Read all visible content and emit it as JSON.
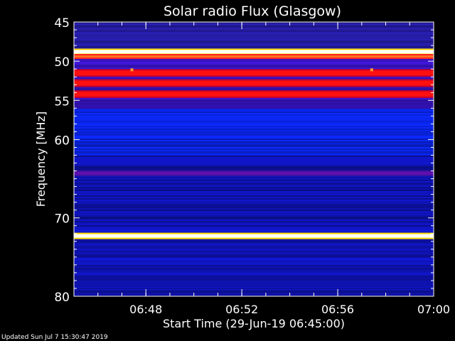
{
  "footer_text": "Updated Sun Jul  7 15:30:47 2019",
  "chart_data": {
    "type": "heatmap",
    "title": "Solar radio Flux (Glasgow)",
    "xlabel": "Start Time (29-Jun-19 06:45:00)",
    "ylabel": "Frequency [MHz]",
    "xlim": [
      "06:45:00",
      "07:00:00"
    ],
    "ylim": [
      45,
      80
    ],
    "x_ticks": [
      "06:48",
      "06:52",
      "06:56",
      "07:00"
    ],
    "y_ticks": [
      45,
      50,
      55,
      60,
      70,
      80
    ],
    "y_inverted": true,
    "colormap": [
      "#0000a0",
      "#0000ff",
      "#ff0000",
      "#ffff00",
      "#ffffff"
    ],
    "intense_bands_mhz": [
      {
        "freq": 48.8,
        "level": "max"
      },
      {
        "freq": 49.4,
        "level": "medium"
      },
      {
        "freq": 51.5,
        "level": "high"
      },
      {
        "freq": 52.8,
        "level": "high"
      },
      {
        "freq": 54.2,
        "level": "high"
      },
      {
        "freq": 64.3,
        "level": "low"
      },
      {
        "freq": 72.3,
        "level": "max"
      }
    ],
    "isolated_points": [
      {
        "time": "06:47:25",
        "freq": 51.1
      },
      {
        "time": "06:57:25",
        "freq": 51.1
      }
    ]
  }
}
